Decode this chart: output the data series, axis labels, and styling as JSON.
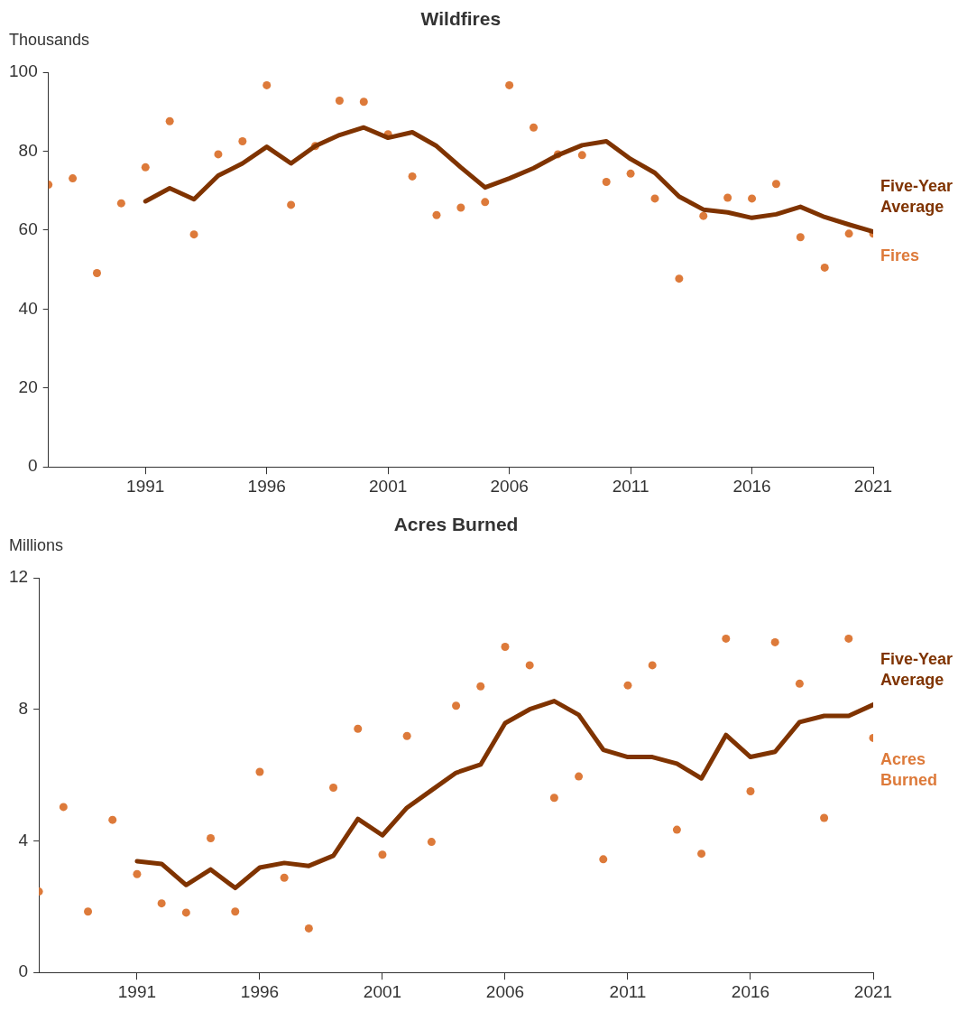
{
  "chart_data": [
    {
      "type": "scatter",
      "title": "Wildfires",
      "ylabel": "Thousands",
      "xlim": [
        1987,
        2021
      ],
      "xticks": [
        1991,
        1996,
        2001,
        2006,
        2011,
        2016,
        2021
      ],
      "ylim": [
        0,
        100
      ],
      "yticks": [
        0,
        20,
        40,
        60,
        80,
        100
      ],
      "grid": false,
      "legend": "right",
      "series": [
        {
          "name": "Five-Year Average",
          "type": "line",
          "color": "#7f3300",
          "marker": "none",
          "x": [
            1991,
            1992,
            1993,
            1994,
            1995,
            1996,
            1997,
            1998,
            1999,
            2000,
            2001,
            2002,
            2003,
            2004,
            2005,
            2006,
            2007,
            2008,
            2009,
            2010,
            2011,
            2012,
            2013,
            2014,
            2015,
            2016,
            2017,
            2018,
            2019,
            2020,
            2021
          ],
          "values": [
            67.3,
            70.6,
            67.8,
            73.8,
            76.9,
            81.1,
            76.9,
            81.3,
            84.1,
            86.0,
            83.4,
            84.8,
            81.3,
            75.9,
            70.8,
            73.1,
            75.7,
            79.0,
            81.5,
            82.5,
            78.0,
            74.5,
            68.5,
            65.2,
            64.5,
            63.1,
            64.0,
            65.9,
            63.3,
            61.4,
            59.6
          ]
        },
        {
          "name": "Fires",
          "type": "scatter",
          "color": "#dd7a3a",
          "marker": "circle",
          "x": [
            1987,
            1988,
            1989,
            1990,
            1991,
            1992,
            1993,
            1994,
            1995,
            1996,
            1997,
            1998,
            1999,
            2000,
            2001,
            2002,
            2003,
            2004,
            2005,
            2006,
            2007,
            2008,
            2009,
            2010,
            2011,
            2012,
            2013,
            2014,
            2015,
            2016,
            2017,
            2018,
            2019,
            2020,
            2021
          ],
          "values": [
            71.5,
            73.1,
            49.1,
            66.8,
            75.9,
            87.6,
            58.9,
            79.2,
            82.5,
            96.7,
            66.4,
            81.3,
            92.8,
            92.5,
            84.3,
            73.6,
            63.8,
            65.7,
            67.1,
            96.7,
            86.0,
            79.2,
            79.0,
            72.2,
            74.3,
            68.0,
            47.7,
            63.6,
            68.2,
            68.0,
            71.7,
            58.2,
            50.5,
            59.1,
            59.1
          ]
        }
      ]
    },
    {
      "type": "scatter",
      "title": "Acres Burned",
      "ylabel": "Millions",
      "xlim": [
        1987,
        2021
      ],
      "xticks": [
        1991,
        1996,
        2001,
        2006,
        2011,
        2016,
        2021
      ],
      "ylim": [
        0,
        12
      ],
      "yticks": [
        0,
        4,
        8,
        12
      ],
      "grid": false,
      "legend": "right",
      "series": [
        {
          "name": "Five-Year Average",
          "type": "line",
          "color": "#7f3300",
          "marker": "none",
          "x": [
            1991,
            1992,
            1993,
            1994,
            1995,
            1996,
            1997,
            1998,
            1999,
            2000,
            2001,
            2002,
            2003,
            2004,
            2005,
            2006,
            2007,
            2008,
            2009,
            2010,
            2011,
            2012,
            2013,
            2014,
            2015,
            2016,
            2017,
            2018,
            2019,
            2020,
            2021
          ],
          "values": [
            3.38,
            3.3,
            2.66,
            3.13,
            2.57,
            3.19,
            3.33,
            3.24,
            3.55,
            4.67,
            4.17,
            5.01,
            5.54,
            6.07,
            6.32,
            7.58,
            8.0,
            8.25,
            7.83,
            6.77,
            6.55,
            6.55,
            6.35,
            5.9,
            7.22,
            6.55,
            6.71,
            7.61,
            7.8,
            7.8,
            8.14
          ]
        },
        {
          "name": "Acres Burned",
          "type": "scatter",
          "color": "#dd7a3a",
          "marker": "circle",
          "x": [
            1987,
            1988,
            1989,
            1990,
            1991,
            1992,
            1993,
            1994,
            1995,
            1996,
            1997,
            1998,
            1999,
            2000,
            2001,
            2002,
            2003,
            2004,
            2005,
            2006,
            2007,
            2008,
            2009,
            2010,
            2011,
            2012,
            2013,
            2014,
            2015,
            2016,
            2017,
            2018,
            2019,
            2020,
            2021
          ],
          "values": [
            2.46,
            5.03,
            1.85,
            4.64,
            2.99,
            2.1,
            1.82,
            4.08,
            1.85,
            6.1,
            2.88,
            1.34,
            5.62,
            7.41,
            3.58,
            7.19,
            3.97,
            8.11,
            8.7,
            9.9,
            9.34,
            5.31,
            5.96,
            3.44,
            8.73,
            9.34,
            4.34,
            3.61,
            10.15,
            5.51,
            10.04,
            8.78,
            4.7,
            10.15,
            7.13
          ]
        }
      ]
    }
  ]
}
